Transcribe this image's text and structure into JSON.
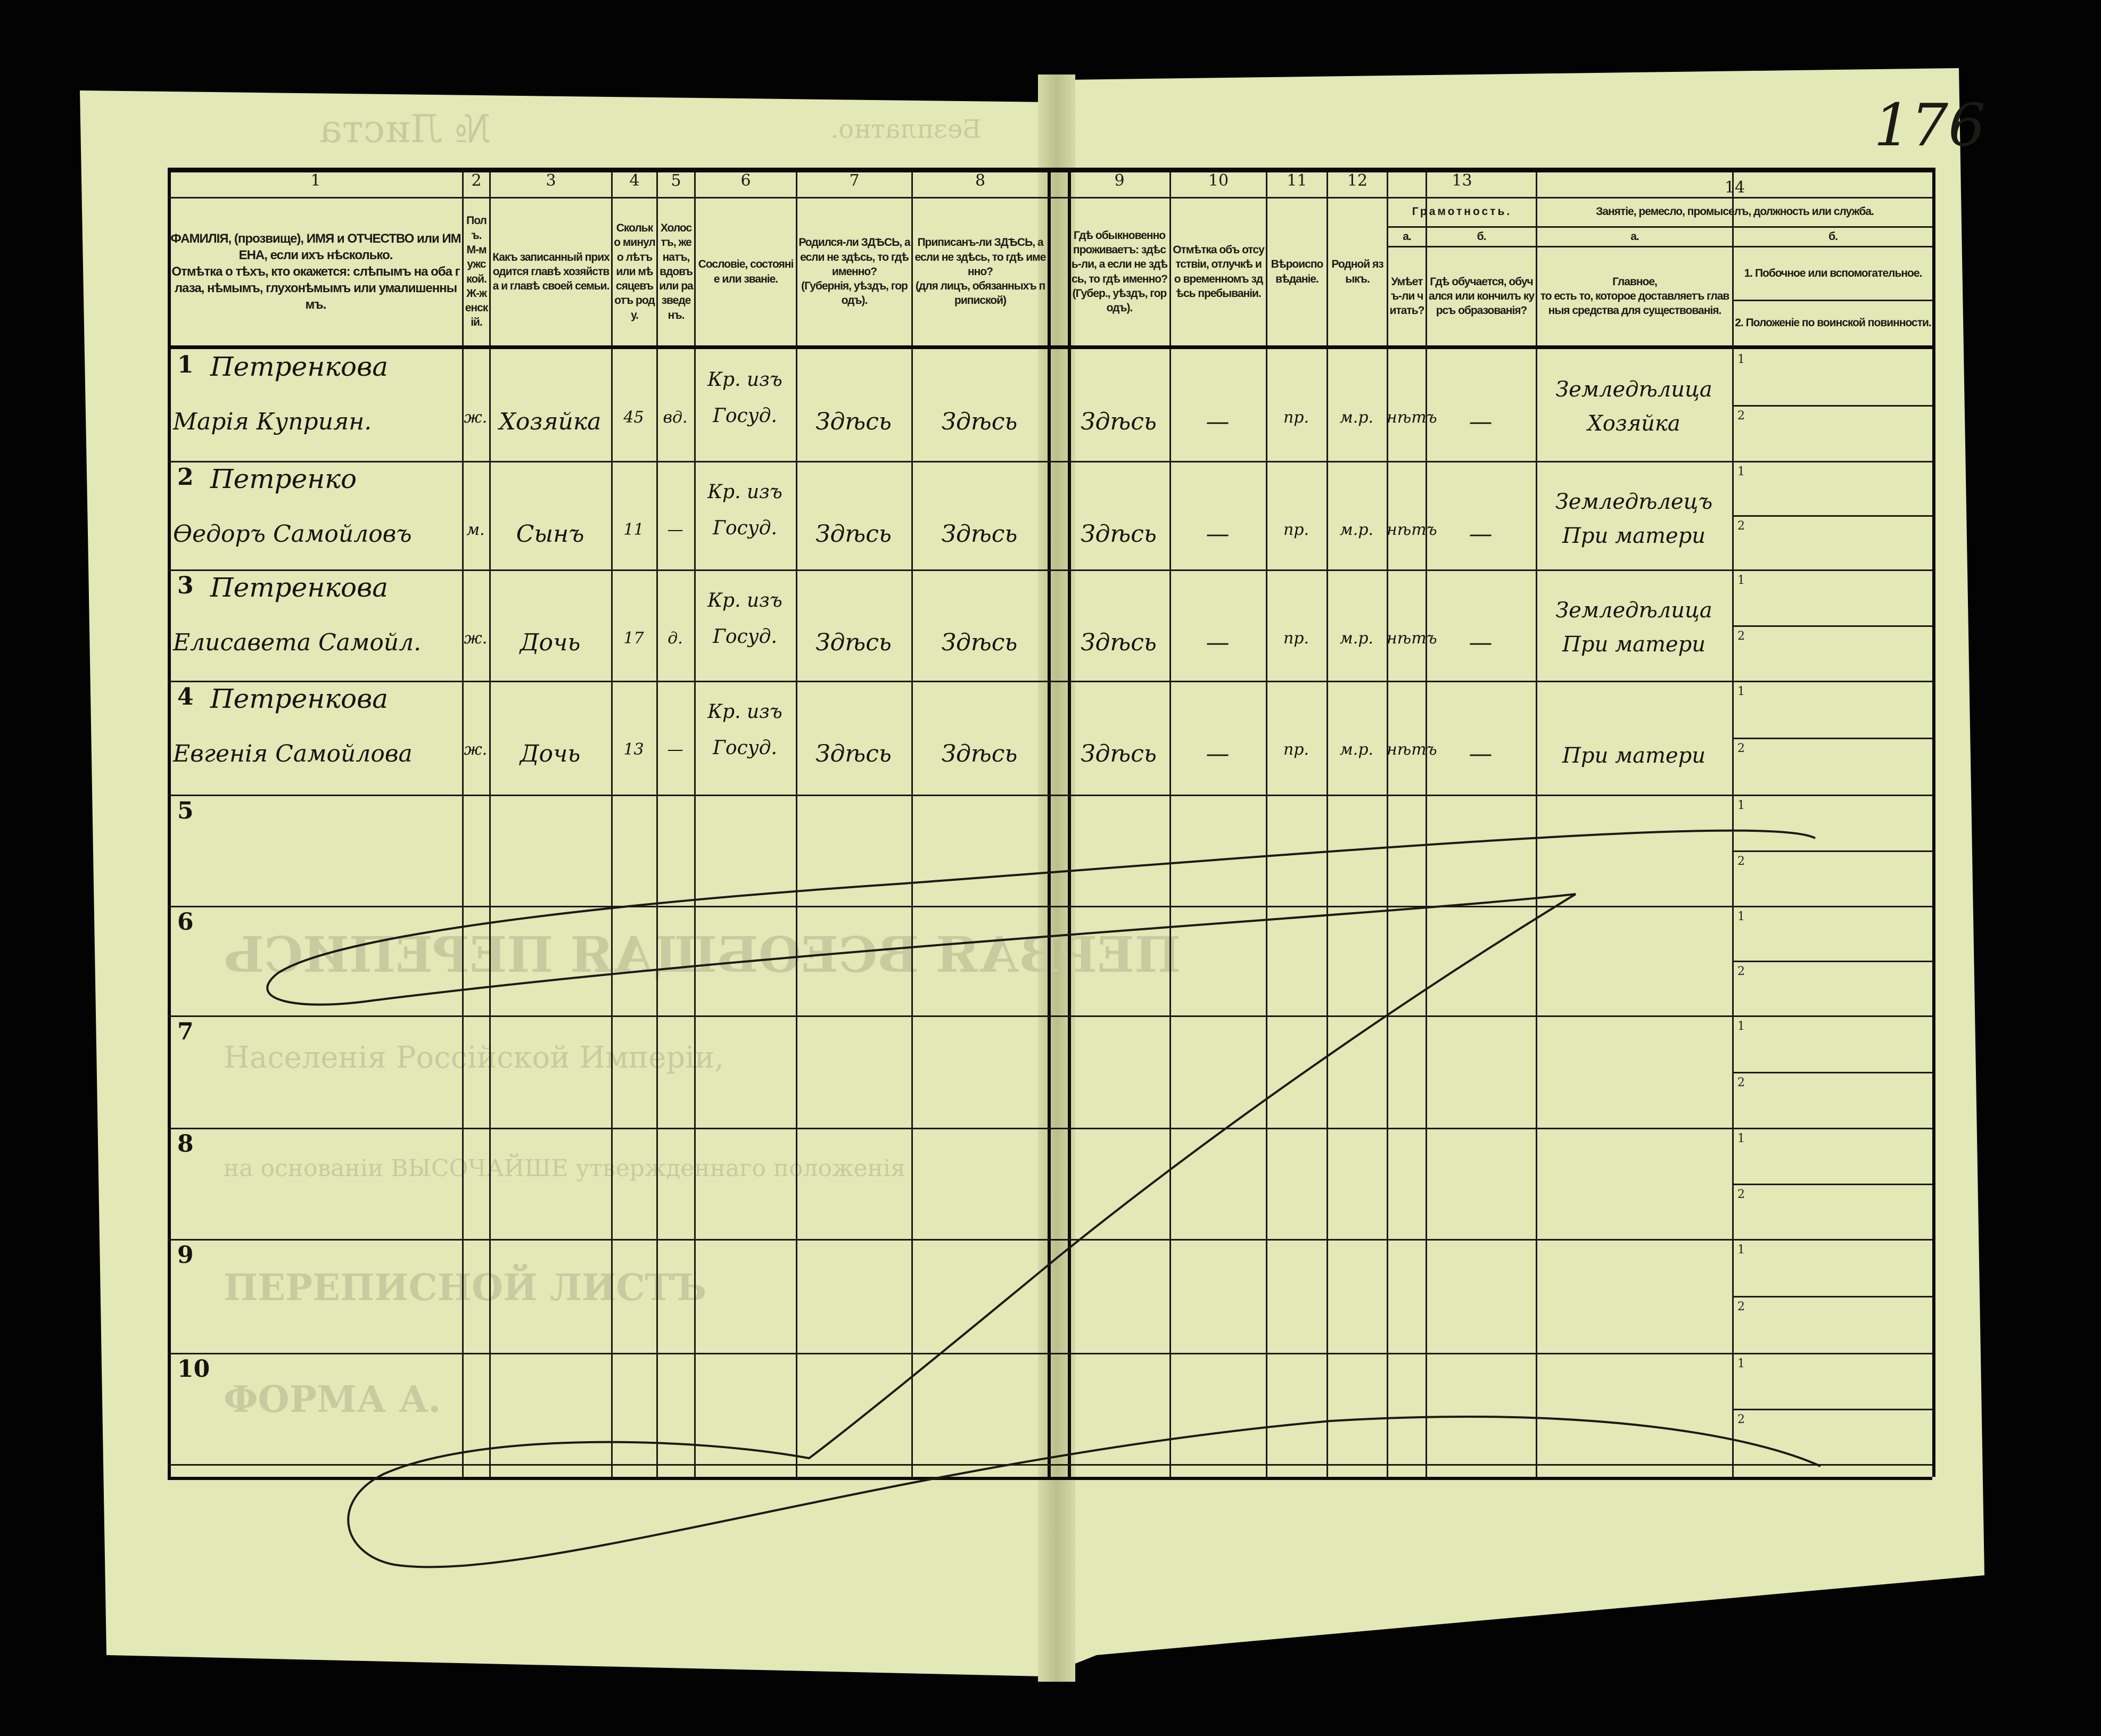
{
  "document": {
    "page_number": "176",
    "show_through": {
      "free_mark": "Безплатно.",
      "sheet_no": "№ Листа",
      "title": "ПЕРВАЯ ВСЕОБЩАЯ ПЕРЕПИСЬ",
      "subtitle": "Населенія Россійской Имперіи,",
      "basis": "на основаніи ВЫСОЧАЙШЕ утвержденнаго положенія",
      "list": "ПЕРЕПИСНОЙ ЛИСТЪ",
      "form": "ФОРМА А."
    }
  },
  "header": {
    "columns": [
      {
        "num": "1",
        "text": "ФАМИЛІЯ, (прозвище), ИМЯ и ОТЧЕСТВО или ИМЕНА, если ихъ нѣсколько.\nОтмѣтка о тѣхъ, кто окажется: слѣпымъ на оба глаза, нѣмымъ, глухонѣмымъ или умалишеннымъ."
      },
      {
        "num": "2",
        "text": "Полъ.\nМ-мужской.\nЖ-женскій."
      },
      {
        "num": "3",
        "text": "Какъ записанный приходится главѣ хозяйства и главѣ своей семьи."
      },
      {
        "num": "4",
        "text": "Сколько минуло лѣтъ или мѣсяцевъ отъ роду."
      },
      {
        "num": "5",
        "text": "Холостъ, женатъ, вдовъ или разведенъ."
      },
      {
        "num": "6",
        "text": "Сословіе, состояніе или званіе."
      },
      {
        "num": "7",
        "text": "Родился-ли ЗДѢСЬ, а если не здѣсь, то гдѣ именно?\n(Губернія, уѣздъ, городъ)."
      },
      {
        "num": "8",
        "text": "Приписанъ-ли ЗДѢСЬ, а если не здѣсь, то гдѣ именно?\n(для лицъ, обязанныхъ припиской)"
      },
      {
        "num": "9",
        "text": "Гдѣ обыкновенно проживаетъ: здѣсь-ли, а если не здѣсь, то гдѣ именно?\n(Губер., уѣздъ, городъ)."
      },
      {
        "num": "10",
        "text": "Отмѣтка объ отсутствіи, отлучкѣ и о временномъ здѣсь пребываніи."
      },
      {
        "num": "11",
        "text": "Вѣроисповѣданіе."
      },
      {
        "num": "12",
        "text": "Родной языкъ."
      }
    ],
    "literacy": {
      "num": "13",
      "title": "Грамотность.",
      "a_label": "а.",
      "a_text": "Умѣетъ-ли читать?",
      "b_label": "б.",
      "b_text": "Гдѣ обучается, обучался или кончилъ курсъ образованія?"
    },
    "occupation": {
      "num": "14",
      "title": "Занятіе, ремесло, промыселъ, должность или служба.",
      "a_label": "а.",
      "a_text": "Главное,\nто есть то, которое доставляетъ главныя средства для существованія.",
      "b_label": "б.",
      "b_text_1": "1. Побочное или вспомогательное.",
      "b_text_2": "2. Положеніе по воинской повинности."
    }
  },
  "row_numbers": [
    "1",
    "2",
    "3",
    "4",
    "5",
    "6",
    "7",
    "8",
    "9",
    "10"
  ],
  "sub_marks": [
    "1",
    "2"
  ],
  "rows": [
    {
      "surname": "Петренкова",
      "given": "Марія Куприян.",
      "sex": "ж.",
      "relation": "Хозяйка",
      "age": "45",
      "marital": "вд.",
      "estate": "Кр. изъ\nГосуд.",
      "born": "Здѣсь",
      "registered": "Здѣсь",
      "resides": "Здѣсь",
      "absence": "—",
      "religion": "пр.",
      "language": "м.р.",
      "reads": "нѣтъ",
      "education": "—",
      "occupation": "Земледѣлица\nХозяйка"
    },
    {
      "surname": "Петренко",
      "given": "Ѳедоръ Самойловъ",
      "sex": "м.",
      "relation": "Сынъ",
      "age": "11",
      "marital": "—",
      "estate": "Кр. изъ\nГосуд.",
      "born": "Здѣсь",
      "registered": "Здѣсь",
      "resides": "Здѣсь",
      "absence": "—",
      "religion": "пр.",
      "language": "м.р.",
      "reads": "нѣтъ",
      "education": "—",
      "occupation": "Земледѣлецъ\nПри матери"
    },
    {
      "surname": "Петренкова",
      "given": "Елисавета Самойл.",
      "sex": "ж.",
      "relation": "Дочь",
      "age": "17",
      "marital": "д.",
      "estate": "Кр. изъ\nГосуд.",
      "born": "Здѣсь",
      "registered": "Здѣсь",
      "resides": "Здѣсь",
      "absence": "—",
      "religion": "пр.",
      "language": "м.р.",
      "reads": "нѣтъ",
      "education": "—",
      "occupation": "Земледѣлица\nПри матери"
    },
    {
      "surname": "Петренкова",
      "given": "Евгенія Самойлова",
      "sex": "ж.",
      "relation": "Дочь",
      "age": "13",
      "marital": "—",
      "estate": "Кр. изъ\nГосуд.",
      "born": "Здѣсь",
      "registered": "Здѣсь",
      "resides": "Здѣсь",
      "absence": "—",
      "religion": "пр.",
      "language": "м.р.",
      "reads": "нѣтъ",
      "education": "—",
      "occupation": "\nПри матери"
    }
  ],
  "colors": {
    "paper": "#e2e8b6",
    "ink": "#14140f",
    "background": "#030303"
  }
}
